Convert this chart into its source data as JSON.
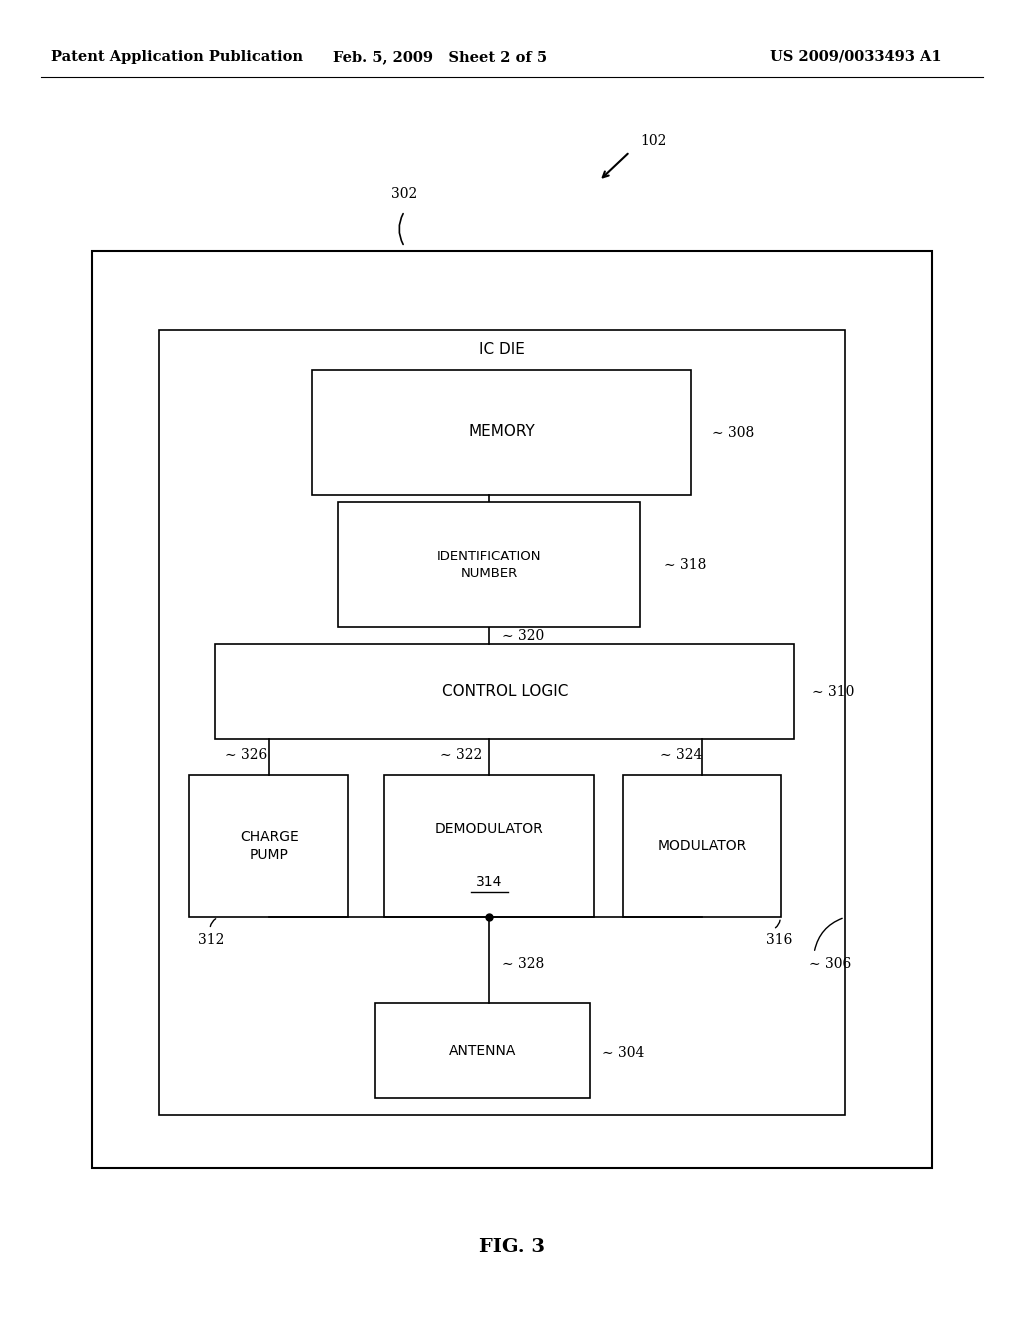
{
  "bg_color": "#ffffff",
  "title_text": "FIG. 3",
  "header_left": "Patent Application Publication",
  "header_mid": "Feb. 5, 2009   Sheet 2 of 5",
  "header_right": "US 2009/0033493 A1"
}
